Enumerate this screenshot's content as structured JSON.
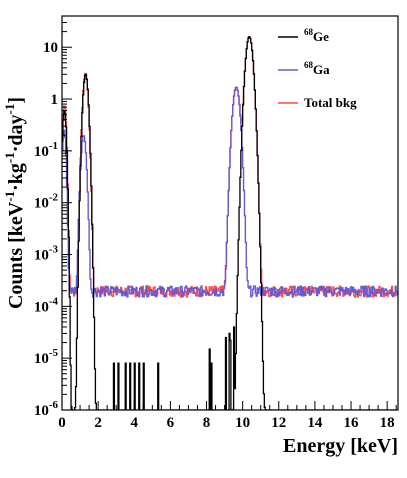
{
  "chart_data": {
    "type": "line",
    "title": "",
    "xlabel": "Energy [keV]",
    "ylabel": "Counts [keV⁻¹·kg⁻¹·day⁻¹]",
    "ylabel_parts": [
      "Counts [keV",
      "-1",
      "·kg",
      "-1",
      "·day",
      "-1",
      "]"
    ],
    "xlim": [
      0,
      18.6
    ],
    "ylim": [
      1e-06,
      40
    ],
    "yscale": "log",
    "x_ticks": [
      0,
      2,
      4,
      6,
      8,
      10,
      12,
      14,
      16,
      18
    ],
    "x_tick_labels": [
      "0",
      "2",
      "4",
      "6",
      "8",
      "10",
      "12",
      "14",
      "16",
      "18"
    ],
    "y_ticks": [
      1e-06,
      1e-05,
      0.0001,
      0.001,
      0.01,
      0.1,
      1,
      10
    ],
    "y_tick_labels": [
      {
        "base": "10",
        "exp": "-6"
      },
      {
        "base": "10",
        "exp": "-5"
      },
      {
        "base": "10",
        "exp": "-4"
      },
      {
        "base": "10",
        "exp": "-3"
      },
      {
        "base": "10",
        "exp": "-2"
      },
      {
        "base": "10",
        "exp": "-1"
      },
      {
        "base": "1",
        "exp": ""
      },
      {
        "base": "10",
        "exp": ""
      }
    ],
    "grid": false,
    "legend_position": "top-right",
    "series": [
      {
        "name": "68Ge",
        "label_sup": "68",
        "label_main": "Ge",
        "color": "#000000",
        "baseline": 1e-06,
        "peaks": [
          {
            "center": 0.14,
            "sigma": 0.07,
            "height": 0.6
          },
          {
            "center": 1.31,
            "sigma": 0.1,
            "height": 3.0
          },
          {
            "center": 10.37,
            "sigma": 0.14,
            "height": 16
          }
        ],
        "spikes": [
          {
            "x": 1.65,
            "y": 1.5e-05
          },
          {
            "x": 2.85,
            "y": 8e-06
          },
          {
            "x": 3.1,
            "y": 8e-06
          },
          {
            "x": 3.55,
            "y": 8e-06
          },
          {
            "x": 3.8,
            "y": 8e-06
          },
          {
            "x": 4.05,
            "y": 8e-06
          },
          {
            "x": 4.3,
            "y": 8e-06
          },
          {
            "x": 4.55,
            "y": 8e-06
          },
          {
            "x": 5.35,
            "y": 8e-06
          },
          {
            "x": 8.15,
            "y": 1.5e-05
          },
          {
            "x": 8.25,
            "y": 8e-06
          },
          {
            "x": 9.1,
            "y": 2.5e-05
          },
          {
            "x": 9.25,
            "y": 3e-05
          },
          {
            "x": 9.35,
            "y": 2.2e-05
          },
          {
            "x": 9.5,
            "y": 4e-05
          }
        ]
      },
      {
        "name": "68Ga",
        "label_sup": "68",
        "label_main": "Ga",
        "color": "#6a5acd",
        "baseline": 0.00019,
        "peaks": [
          {
            "center": 0.12,
            "sigma": 0.07,
            "height": 0.25
          },
          {
            "center": 1.2,
            "sigma": 0.1,
            "height": 0.2
          },
          {
            "center": 9.65,
            "sigma": 0.14,
            "height": 1.7
          }
        ]
      },
      {
        "name": "Total bkg",
        "label_main": "Total bkg",
        "color": "#ff4a4a",
        "baseline": 0.00019,
        "peaks": [
          {
            "center": 0.14,
            "sigma": 0.07,
            "height": 0.75
          },
          {
            "center": 1.3,
            "sigma": 0.1,
            "height": 3.2
          },
          {
            "center": 9.65,
            "sigma": 0.14,
            "height": 1.7
          },
          {
            "center": 10.37,
            "sigma": 0.14,
            "height": 16
          }
        ]
      }
    ]
  }
}
